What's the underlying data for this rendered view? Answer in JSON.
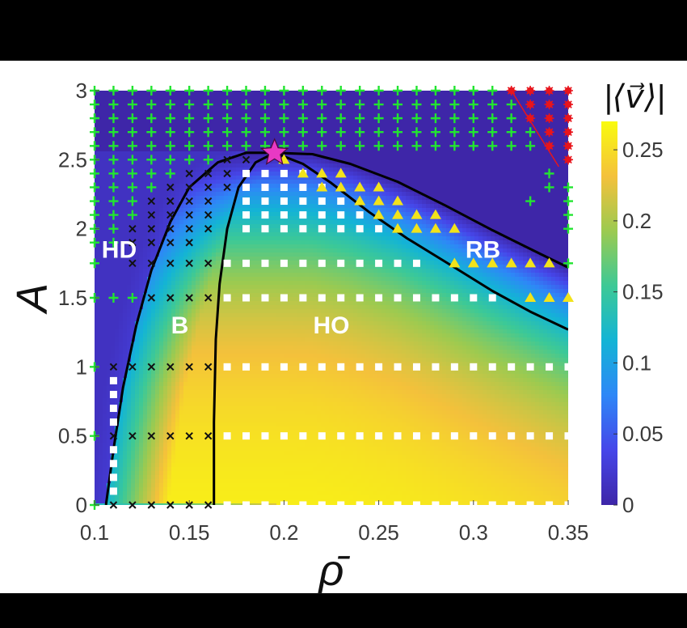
{
  "chart_data": {
    "type": "heatmap",
    "xlabel": "ρ̄",
    "ylabel": "A",
    "xlim": [
      0.1,
      0.35
    ],
    "ylim": [
      0,
      3
    ],
    "x_ticks": [
      "0.1",
      "0.15",
      "0.2",
      "0.25",
      "0.3",
      "0.35"
    ],
    "y_ticks": [
      "0",
      "0.5",
      "1",
      "1.5",
      "2",
      "2.5",
      "3"
    ],
    "colorbar": {
      "label": "|⟨v⃗⟩|",
      "range": [
        0,
        0.27
      ],
      "ticks": [
        "0",
        "0.05",
        "0.1",
        "0.15",
        "0.2",
        "0.25"
      ],
      "colors": [
        "#3e26a8",
        "#4646e9",
        "#2e87f7",
        "#13b4d5",
        "#3dc996",
        "#9cca50",
        "#f4c13b",
        "#f9fb0e"
      ]
    },
    "region_labels": [
      {
        "text": "HD",
        "x": 0.113,
        "y": 1.85
      },
      {
        "text": "B",
        "x": 0.145,
        "y": 1.3
      },
      {
        "text": "HO",
        "x": 0.225,
        "y": 1.3
      },
      {
        "text": "RB",
        "x": 0.305,
        "y": 1.85
      }
    ],
    "critical_point": {
      "x": 0.195,
      "y": 2.55,
      "marker": "star",
      "color": "#e839c4"
    },
    "boundaries": [
      {
        "name": "HD-B",
        "points": [
          [
            0.106,
            0
          ],
          [
            0.11,
            0.4
          ],
          [
            0.115,
            0.85
          ],
          [
            0.122,
            1.3
          ],
          [
            0.13,
            1.7
          ],
          [
            0.14,
            2.05
          ],
          [
            0.15,
            2.3
          ],
          [
            0.165,
            2.48
          ],
          [
            0.18,
            2.55
          ],
          [
            0.195,
            2.55
          ]
        ]
      },
      {
        "name": "B-HO",
        "points": [
          [
            0.163,
            0
          ],
          [
            0.163,
            0.6
          ],
          [
            0.164,
            1.2
          ],
          [
            0.166,
            1.6
          ],
          [
            0.17,
            2.0
          ],
          [
            0.176,
            2.3
          ],
          [
            0.185,
            2.48
          ],
          [
            0.195,
            2.55
          ]
        ]
      },
      {
        "name": "HO-RB upper",
        "points": [
          [
            0.195,
            2.55
          ],
          [
            0.215,
            2.54
          ],
          [
            0.235,
            2.47
          ],
          [
            0.26,
            2.34
          ],
          [
            0.285,
            2.17
          ],
          [
            0.31,
            1.99
          ],
          [
            0.335,
            1.82
          ],
          [
            0.35,
            1.72
          ]
        ]
      },
      {
        "name": "HO-RB lower",
        "points": [
          [
            0.195,
            2.55
          ],
          [
            0.21,
            2.47
          ],
          [
            0.225,
            2.33
          ],
          [
            0.245,
            2.12
          ],
          [
            0.265,
            1.93
          ],
          [
            0.29,
            1.72
          ],
          [
            0.31,
            1.55
          ],
          [
            0.33,
            1.4
          ],
          [
            0.35,
            1.27
          ]
        ]
      },
      {
        "name": "red corner",
        "points": [
          [
            0.32,
            3.0
          ],
          [
            0.345,
            2.45
          ]
        ],
        "color": "#e8151c"
      }
    ],
    "markers": {
      "green_plus": {
        "color": "#22e530",
        "full_rows": [
          3.0,
          2.9,
          2.8,
          2.7,
          2.6
        ],
        "partial_rows": [
          {
            "y": 2.5,
            "x": [
              0.1,
              0.11,
              0.12,
              0.13,
              0.14,
              0.15,
              0.16
            ]
          },
          {
            "y": 2.4,
            "x": [
              0.1,
              0.11,
              0.12,
              0.13,
              0.14
            ]
          },
          {
            "y": 2.3,
            "x": [
              0.1,
              0.11,
              0.12,
              0.13
            ]
          },
          {
            "y": 2.2,
            "x": [
              0.1,
              0.11,
              0.12
            ]
          },
          {
            "y": 2.1,
            "x": [
              0.1,
              0.11,
              0.12
            ]
          },
          {
            "y": 2.0,
            "x": [
              0.1,
              0.11
            ]
          },
          {
            "y": 1.9,
            "x": [
              0.1,
              0.11
            ]
          },
          {
            "y": 1.75,
            "x": [
              0.1
            ]
          },
          {
            "y": 1.5,
            "x": [
              0.1,
              0.11,
              0.12
            ]
          },
          {
            "y": 1.0,
            "x": [
              0.1
            ]
          },
          {
            "y": 0.5,
            "x": [
              0.1
            ]
          },
          {
            "y": 0.0,
            "x": [
              0.1
            ]
          }
        ],
        "right_points": [
          [
            0.35,
            2.1
          ],
          [
            0.35,
            2.0
          ],
          [
            0.35,
            1.75
          ],
          [
            0.34,
            2.4
          ],
          [
            0.35,
            2.3
          ],
          [
            0.35,
            2.2
          ],
          [
            0.33,
            2.2
          ],
          [
            0.34,
            2.3
          ]
        ]
      },
      "black_x": {
        "color": "#111111",
        "rows": [
          {
            "y": 2.5,
            "x": [
              0.17,
              0.18
            ]
          },
          {
            "y": 2.4,
            "x": [
              0.15,
              0.16,
              0.17
            ]
          },
          {
            "y": 2.3,
            "x": [
              0.14,
              0.15,
              0.16,
              0.17
            ]
          },
          {
            "y": 2.2,
            "x": [
              0.13,
              0.14,
              0.15,
              0.16
            ]
          },
          {
            "y": 2.1,
            "x": [
              0.13,
              0.14,
              0.15,
              0.16
            ]
          },
          {
            "y": 2.0,
            "x": [
              0.12,
              0.13,
              0.14,
              0.15,
              0.16
            ]
          },
          {
            "y": 1.9,
            "x": [
              0.12,
              0.13,
              0.14,
              0.15
            ]
          },
          {
            "y": 1.75,
            "x": [
              0.12,
              0.13,
              0.14,
              0.15,
              0.16
            ]
          },
          {
            "y": 1.5,
            "x": [
              0.13,
              0.14,
              0.15,
              0.16
            ]
          },
          {
            "y": 1.0,
            "x": [
              0.11,
              0.12,
              0.13,
              0.14,
              0.15,
              0.16
            ]
          },
          {
            "y": 0.5,
            "x": [
              0.11,
              0.12,
              0.13,
              0.14,
              0.15,
              0.16
            ]
          },
          {
            "y": 0.0,
            "x": [
              0.11,
              0.12,
              0.13,
              0.14,
              0.15,
              0.16
            ]
          }
        ]
      },
      "white_square": {
        "color": "#ffffff",
        "rows": [
          {
            "y": 2.4,
            "x": [
              0.18,
              0.19,
              0.2,
              0.21
            ]
          },
          {
            "y": 2.3,
            "x": [
              0.18,
              0.19,
              0.2,
              0.21,
              0.22
            ]
          },
          {
            "y": 2.2,
            "x": [
              0.18,
              0.19,
              0.2,
              0.21,
              0.22,
              0.23
            ]
          },
          {
            "y": 2.1,
            "x": [
              0.18,
              0.19,
              0.2,
              0.21,
              0.22,
              0.23,
              0.24
            ]
          },
          {
            "y": 2.0,
            "x": [
              0.18,
              0.19,
              0.2,
              0.21,
              0.22,
              0.23,
              0.24,
              0.25
            ]
          },
          {
            "y": 1.75,
            "x": [
              0.17,
              0.18,
              0.19,
              0.2,
              0.21,
              0.22,
              0.23,
              0.24,
              0.25,
              0.26,
              0.27
            ]
          },
          {
            "y": 1.5,
            "x": [
              0.17,
              0.18,
              0.19,
              0.2,
              0.21,
              0.22,
              0.23,
              0.24,
              0.25,
              0.26,
              0.27,
              0.28,
              0.29,
              0.3,
              0.31
            ]
          },
          {
            "y": 1.0,
            "x": [
              0.17,
              0.18,
              0.19,
              0.2,
              0.21,
              0.22,
              0.23,
              0.24,
              0.25,
              0.26,
              0.27,
              0.28,
              0.29,
              0.3,
              0.31,
              0.32,
              0.33,
              0.34,
              0.35
            ]
          },
          {
            "y": 0.5,
            "x": [
              0.17,
              0.18,
              0.19,
              0.2,
              0.21,
              0.22,
              0.23,
              0.24,
              0.25,
              0.26,
              0.27,
              0.28,
              0.29,
              0.3,
              0.31,
              0.32,
              0.33,
              0.34,
              0.35
            ]
          },
          {
            "y": 0.0,
            "x": [
              0.17,
              0.18,
              0.19,
              0.2,
              0.21,
              0.22,
              0.23,
              0.24,
              0.25,
              0.26,
              0.27,
              0.28,
              0.29,
              0.3,
              0.31,
              0.32,
              0.33,
              0.34,
              0.35
            ]
          }
        ],
        "left_column": {
          "x": 0.11,
          "y": [
            0.1,
            0.2,
            0.3,
            0.4,
            0.6,
            0.7,
            0.8,
            0.9
          ]
        }
      },
      "yellow_triangle": {
        "color": "#f2e31b",
        "rows": [
          {
            "y": 2.5,
            "x": [
              0.2
            ]
          },
          {
            "y": 2.4,
            "x": [
              0.21,
              0.22,
              0.23
            ]
          },
          {
            "y": 2.3,
            "x": [
              0.22,
              0.23,
              0.24,
              0.25
            ]
          },
          {
            "y": 2.2,
            "x": [
              0.24,
              0.25,
              0.26
            ]
          },
          {
            "y": 2.1,
            "x": [
              0.25,
              0.26,
              0.27,
              0.28
            ]
          },
          {
            "y": 2.0,
            "x": [
              0.26,
              0.27,
              0.28,
              0.29
            ]
          },
          {
            "y": 1.75,
            "x": [
              0.29,
              0.3,
              0.31,
              0.32,
              0.33,
              0.34
            ]
          },
          {
            "y": 1.5,
            "x": [
              0.33,
              0.34,
              0.35
            ]
          }
        ]
      },
      "red_asterisk": {
        "color": "#e8151c",
        "points": [
          [
            0.32,
            3.0
          ],
          [
            0.33,
            3.0
          ],
          [
            0.34,
            3.0
          ],
          [
            0.35,
            3.0
          ],
          [
            0.33,
            2.9
          ],
          [
            0.34,
            2.9
          ],
          [
            0.35,
            2.9
          ],
          [
            0.33,
            2.8
          ],
          [
            0.34,
            2.8
          ],
          [
            0.35,
            2.8
          ],
          [
            0.34,
            2.7
          ],
          [
            0.35,
            2.7
          ],
          [
            0.34,
            2.6
          ],
          [
            0.35,
            2.6
          ],
          [
            0.35,
            2.5
          ]
        ]
      }
    }
  }
}
